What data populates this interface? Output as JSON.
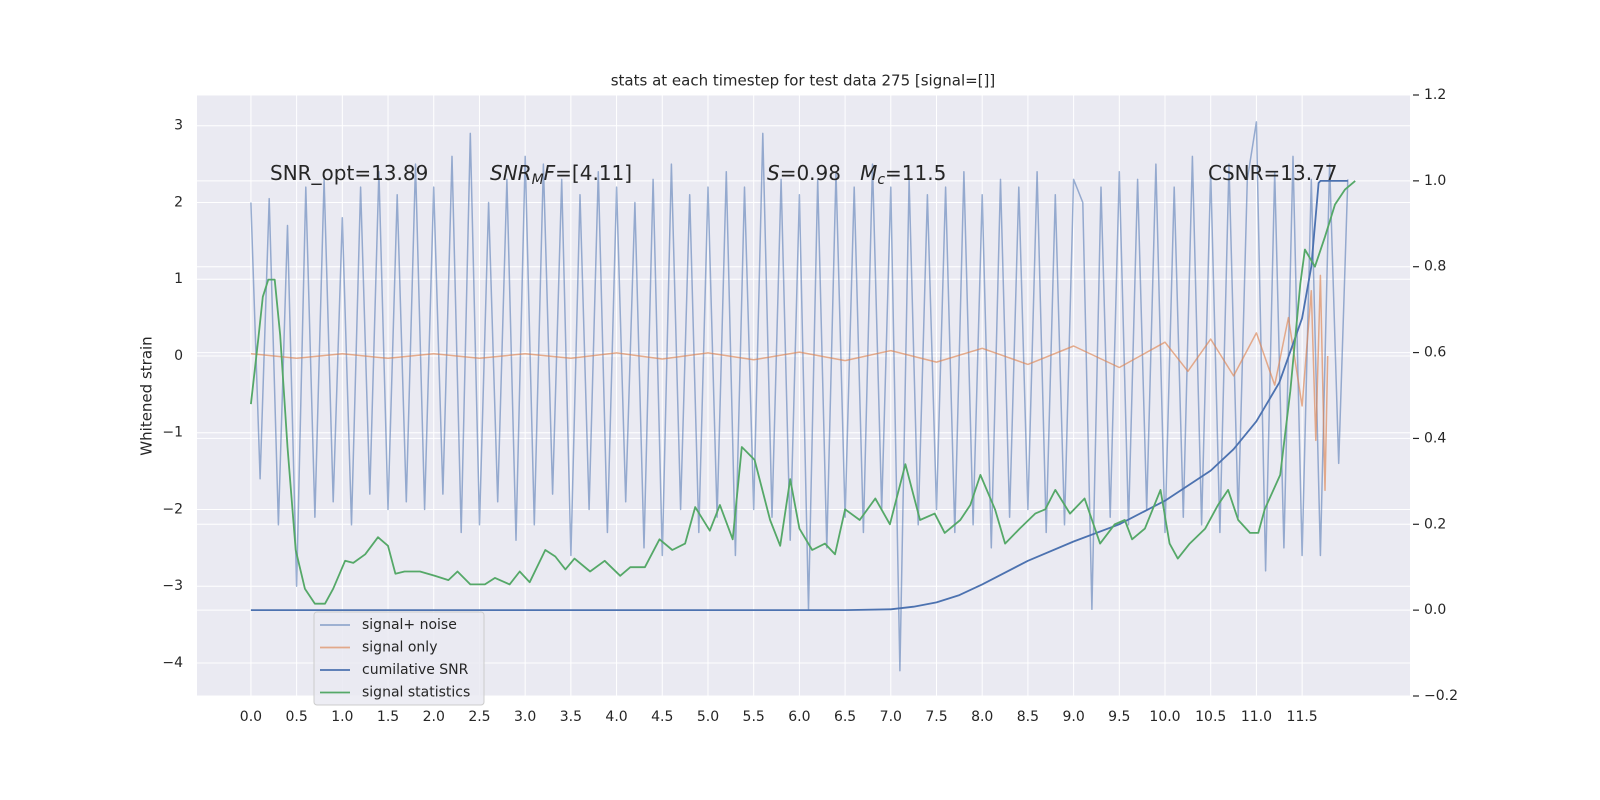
{
  "chart_data": {
    "type": "line",
    "title": "stats at each timestep for test data 275 [signal=[]]",
    "ylabel": "Whitened strain",
    "xlim": [
      -0.59,
      12.68
    ],
    "ylim": [
      -4.43,
      3.4
    ],
    "y2lim": [
      -0.2,
      1.2
    ],
    "xticks": [
      {
        "value": 0,
        "label": "0.0"
      },
      0.5,
      {
        "value": 1,
        "label": "1.0"
      },
      1.5,
      {
        "value": 2,
        "label": "2.0"
      },
      2.5,
      {
        "value": 3,
        "label": "3.0"
      },
      3.5,
      {
        "value": 4,
        "label": "4.0"
      },
      4.5,
      {
        "value": 5,
        "label": "5.0"
      },
      5.5,
      {
        "value": 6,
        "label": "6.0"
      },
      6.5,
      {
        "value": 7,
        "label": "7.0"
      },
      7.5,
      {
        "value": 8,
        "label": "8.0"
      },
      8.5,
      {
        "value": 9,
        "label": "9.0"
      },
      9.5,
      {
        "value": 10,
        "label": "10.0"
      },
      10.5,
      {
        "value": 11,
        "label": "11.0"
      },
      11.5
    ],
    "yticks": [
      {
        "value": -4,
        "label": "−4"
      },
      {
        "value": -3,
        "label": "−3"
      },
      {
        "value": -2,
        "label": "−2"
      },
      {
        "value": -1,
        "label": "−1"
      },
      0,
      1,
      2,
      3
    ],
    "y2ticks": [
      {
        "value": -0.2,
        "label": "−0.2"
      },
      {
        "value": 0,
        "label": "0.0"
      },
      0.2,
      0.4,
      0.6,
      0.8,
      {
        "value": 1,
        "label": "1.0"
      },
      1.2
    ],
    "grid": true,
    "legend_loc": "lower left",
    "annotations": [
      [
        {
          "text": "SNR_opt=13.89"
        }
      ],
      [
        {
          "text": "SNR",
          "italic": true
        },
        {
          "text": "M",
          "italic": true,
          "sub": true
        },
        {
          "text": "F",
          "italic": true
        },
        {
          "text": "=[4.11]"
        }
      ],
      [
        {
          "text": "S",
          "italic": true
        },
        {
          "text": "=0.98   "
        },
        {
          "text": "M",
          "italic": true
        },
        {
          "text": "c",
          "italic": true,
          "sub": true
        },
        {
          "text": "=11.5"
        }
      ],
      [
        {
          "text": "CSNR=13.77"
        }
      ]
    ],
    "series": [
      {
        "name": "signal+ noise",
        "color": "#4c72b0",
        "alpha": 0.55,
        "axis": "y",
        "x": [
          0,
          0.1,
          0.2,
          0.3,
          0.4,
          0.5,
          0.6,
          0.7,
          0.8,
          0.9,
          1,
          1.1,
          1.2,
          1.3,
          1.4,
          1.5,
          1.6,
          1.7,
          1.8,
          1.9,
          2,
          2.1,
          2.2,
          2.3,
          2.4,
          2.5,
          2.6,
          2.7,
          2.8,
          2.9,
          3,
          3.1,
          3.2,
          3.3,
          3.4,
          3.5,
          3.6,
          3.7,
          3.8,
          3.9,
          4,
          4.1,
          4.2,
          4.3,
          4.4,
          4.5,
          4.6,
          4.7,
          4.8,
          4.9,
          5,
          5.1,
          5.2,
          5.3,
          5.4,
          5.5,
          5.6,
          5.7,
          5.8,
          5.9,
          6,
          6.1,
          6.2,
          6.3,
          6.4,
          6.5,
          6.6,
          6.7,
          6.8,
          6.9,
          7,
          7.1,
          7.2,
          7.3,
          7.4,
          7.5,
          7.6,
          7.7,
          7.8,
          7.9,
          8,
          8.1,
          8.2,
          8.3,
          8.4,
          8.5,
          8.6,
          8.7,
          8.8,
          8.9,
          9,
          9.1,
          9.2,
          9.3,
          9.4,
          9.5,
          9.6,
          9.7,
          9.8,
          9.9,
          10,
          10.1,
          10.2,
          10.3,
          10.4,
          10.5,
          10.6,
          10.7,
          10.8,
          10.9,
          11,
          11.1,
          11.2,
          11.3,
          11.4,
          11.5,
          11.6,
          11.7,
          11.8,
          11.9,
          12
        ],
        "values": [
          2.0,
          -1.6,
          2.05,
          -2.2,
          1.7,
          -3.0,
          2.2,
          -2.1,
          2.3,
          -1.9,
          1.8,
          -2.2,
          2.2,
          -1.8,
          2.4,
          -2.0,
          2.1,
          -1.9,
          2.5,
          -2.0,
          2.2,
          -1.8,
          2.6,
          -2.3,
          2.9,
          -2.2,
          2.0,
          -1.9,
          2.3,
          -2.4,
          2.6,
          -2.2,
          2.5,
          -1.8,
          2.3,
          -2.6,
          2.1,
          -2.0,
          2.4,
          -2.3,
          2.2,
          -1.9,
          2.0,
          -2.5,
          2.3,
          -2.6,
          2.5,
          -2.0,
          2.1,
          -2.3,
          2.2,
          -2.1,
          2.4,
          -2.6,
          2.2,
          -2.0,
          2.9,
          -2.1,
          2.3,
          -2.4,
          2.1,
          -3.3,
          2.3,
          -2.5,
          2.4,
          -2.1,
          2.2,
          -2.3,
          2.5,
          -2.0,
          2.2,
          -4.1,
          2.3,
          -2.2,
          2.1,
          -2.0,
          2.2,
          -2.3,
          2.4,
          -2.2,
          2.1,
          -2.5,
          2.3,
          -2.1,
          2.2,
          -2.0,
          2.4,
          -2.3,
          2.1,
          -2.2,
          2.3,
          2.0,
          -3.3,
          2.2,
          -2.1,
          2.4,
          -2.2,
          2.3,
          -2.0,
          2.5,
          -2.3,
          2.2,
          -2.1,
          2.6,
          -2.2,
          2.4,
          -2.3,
          2.5,
          -2.1,
          2.3,
          3.05,
          -2.8,
          2.4,
          -2.5,
          2.6,
          -2.6,
          2.3,
          -2.6,
          2.5,
          -1.4,
          2.3
        ]
      },
      {
        "name": "signal only",
        "color": "#dd8452",
        "alpha": 0.65,
        "axis": "y",
        "x": [
          0,
          0.5,
          1,
          1.5,
          2,
          2.5,
          3,
          3.5,
          4,
          4.5,
          5,
          5.5,
          6,
          6.5,
          7,
          7.5,
          8,
          8.5,
          9,
          9.5,
          10,
          10.25,
          10.5,
          10.75,
          11,
          11.2,
          11.35,
          11.5,
          11.6,
          11.65,
          11.7,
          11.75,
          11.78
        ],
        "values": [
          0.03,
          -0.03,
          0.03,
          -0.03,
          0.03,
          -0.03,
          0.03,
          -0.03,
          0.04,
          -0.04,
          0.04,
          -0.05,
          0.05,
          -0.06,
          0.07,
          -0.08,
          0.1,
          -0.11,
          0.13,
          -0.15,
          0.18,
          -0.2,
          0.22,
          -0.26,
          0.3,
          -0.38,
          0.5,
          -0.65,
          0.85,
          -1.1,
          1.05,
          -1.75,
          0.0
        ]
      },
      {
        "name": "cumilative SNR",
        "color": "#4c72b0",
        "alpha": 1,
        "axis": "y2",
        "x": [
          0,
          6.5,
          7.0,
          7.25,
          7.5,
          7.75,
          8.0,
          8.5,
          9.0,
          9.5,
          10.0,
          10.5,
          10.75,
          11.0,
          11.25,
          11.5,
          11.6,
          11.68,
          11.7,
          12.0
        ],
        "values": [
          0,
          0,
          0.002,
          0.008,
          0.018,
          0.035,
          0.06,
          0.115,
          0.16,
          0.2,
          0.255,
          0.325,
          0.375,
          0.44,
          0.53,
          0.68,
          0.8,
          0.995,
          1.0,
          1.0
        ]
      },
      {
        "name": "signal statistics",
        "color": "#55a868",
        "alpha": 1,
        "axis": "y2",
        "x": [
          0,
          0.08,
          0.13,
          0.19,
          0.26,
          0.32,
          0.4,
          0.49,
          0.59,
          0.7,
          0.81,
          0.9,
          1.03,
          1.12,
          1.25,
          1.39,
          1.5,
          1.58,
          1.68,
          1.85,
          2.01,
          2.16,
          2.26,
          2.4,
          2.56,
          2.67,
          2.83,
          2.94,
          3.05,
          3.22,
          3.33,
          3.44,
          3.54,
          3.71,
          3.87,
          4.04,
          4.15,
          4.31,
          4.47,
          4.61,
          4.75,
          4.86,
          5.02,
          5.13,
          5.27,
          5.37,
          5.51,
          5.68,
          5.79,
          5.9,
          6.0,
          6.14,
          6.28,
          6.39,
          6.5,
          6.66,
          6.83,
          6.99,
          7.16,
          7.32,
          7.48,
          7.59,
          7.76,
          7.87,
          7.98,
          8.14,
          8.25,
          8.41,
          8.58,
          8.69,
          8.8,
          8.96,
          9.12,
          9.29,
          9.45,
          9.56,
          9.64,
          9.78,
          9.95,
          10.05,
          10.14,
          10.27,
          10.44,
          10.58,
          10.69,
          10.8,
          10.93,
          11.02,
          11.09,
          11.26,
          11.37,
          11.48,
          11.53,
          11.64,
          11.75,
          11.86,
          11.97,
          12.08
        ],
        "values": [
          0.48,
          0.63,
          0.73,
          0.77,
          0.77,
          0.64,
          0.38,
          0.14,
          0.05,
          0.015,
          0.015,
          0.05,
          0.115,
          0.11,
          0.13,
          0.17,
          0.15,
          0.085,
          0.09,
          0.09,
          0.08,
          0.07,
          0.09,
          0.06,
          0.06,
          0.075,
          0.06,
          0.09,
          0.065,
          0.14,
          0.125,
          0.095,
          0.12,
          0.09,
          0.115,
          0.08,
          0.1,
          0.1,
          0.165,
          0.14,
          0.155,
          0.24,
          0.185,
          0.245,
          0.165,
          0.38,
          0.35,
          0.21,
          0.15,
          0.305,
          0.19,
          0.14,
          0.155,
          0.13,
          0.235,
          0.21,
          0.26,
          0.2,
          0.34,
          0.21,
          0.225,
          0.18,
          0.21,
          0.245,
          0.315,
          0.235,
          0.155,
          0.19,
          0.225,
          0.235,
          0.28,
          0.225,
          0.26,
          0.155,
          0.2,
          0.21,
          0.165,
          0.19,
          0.28,
          0.155,
          0.12,
          0.155,
          0.19,
          0.245,
          0.28,
          0.21,
          0.18,
          0.18,
          0.235,
          0.315,
          0.51,
          0.76,
          0.84,
          0.8,
          0.87,
          0.945,
          0.98,
          1.0
        ]
      }
    ]
  }
}
